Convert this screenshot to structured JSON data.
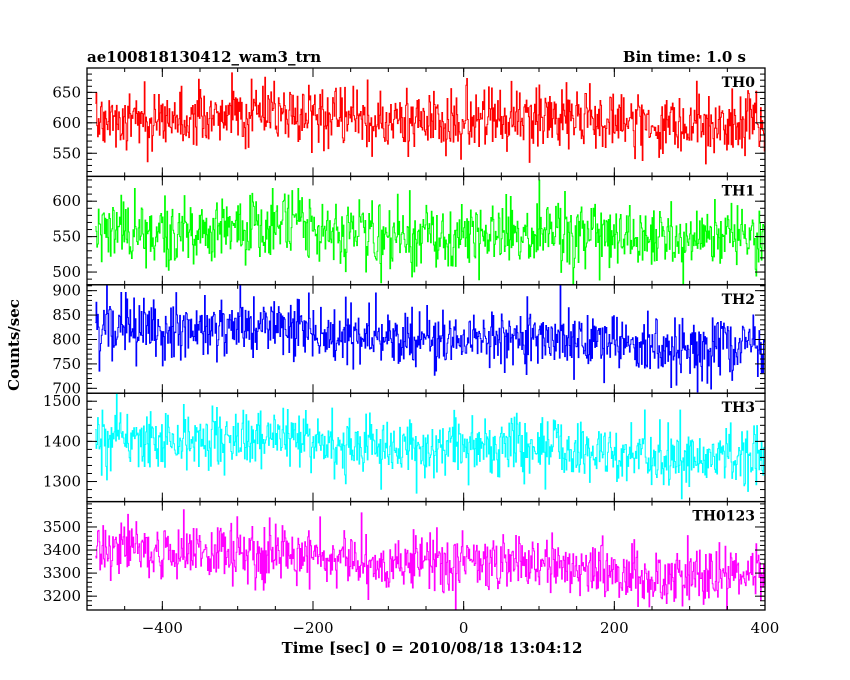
{
  "header": {
    "left_title": "ae100818130412_wam3_trn",
    "right_title": "Bin time: 1.0 s"
  },
  "chart_data": {
    "type": "line",
    "xlabel": "Time [sec] 0 = 2010/08/18 13:04:12",
    "ylabel": "Counts/sec",
    "xlim": [
      -500,
      400
    ],
    "xticks": [
      -400,
      -200,
      0,
      200,
      400
    ],
    "x_start": -489,
    "x_end": 399,
    "bin_time": 1.0,
    "grid": false,
    "panels": [
      {
        "name": "TH0",
        "color": "#ff0000",
        "ylim": [
          512,
          690
        ],
        "yticks": [
          550,
          600,
          650
        ],
        "trend_start": 615,
        "trend_end": 598,
        "noise_sd": 25
      },
      {
        "name": "TH1",
        "color": "#00ff00",
        "ylim": [
          482,
          635
        ],
        "yticks": [
          500,
          550,
          600
        ],
        "trend_start": 562,
        "trend_end": 547,
        "noise_sd": 24
      },
      {
        "name": "TH2",
        "color": "#0000ff",
        "ylim": [
          690,
          912
        ],
        "yticks": [
          700,
          750,
          800,
          850,
          900
        ],
        "trend_start": 832,
        "trend_end": 780,
        "noise_sd": 30
      },
      {
        "name": "TH3",
        "color": "#00ffff",
        "ylim": [
          1250,
          1520
        ],
        "yticks": [
          1300,
          1400,
          1500
        ],
        "trend_start": 1420,
        "trend_end": 1355,
        "noise_sd": 38
      },
      {
        "name": "TH0123",
        "color": "#ff00ff",
        "ylim": [
          3140,
          3610
        ],
        "yticks": [
          3200,
          3300,
          3400,
          3500
        ],
        "trend_start": 3420,
        "trend_end": 3275,
        "noise_sd": 62
      }
    ]
  }
}
